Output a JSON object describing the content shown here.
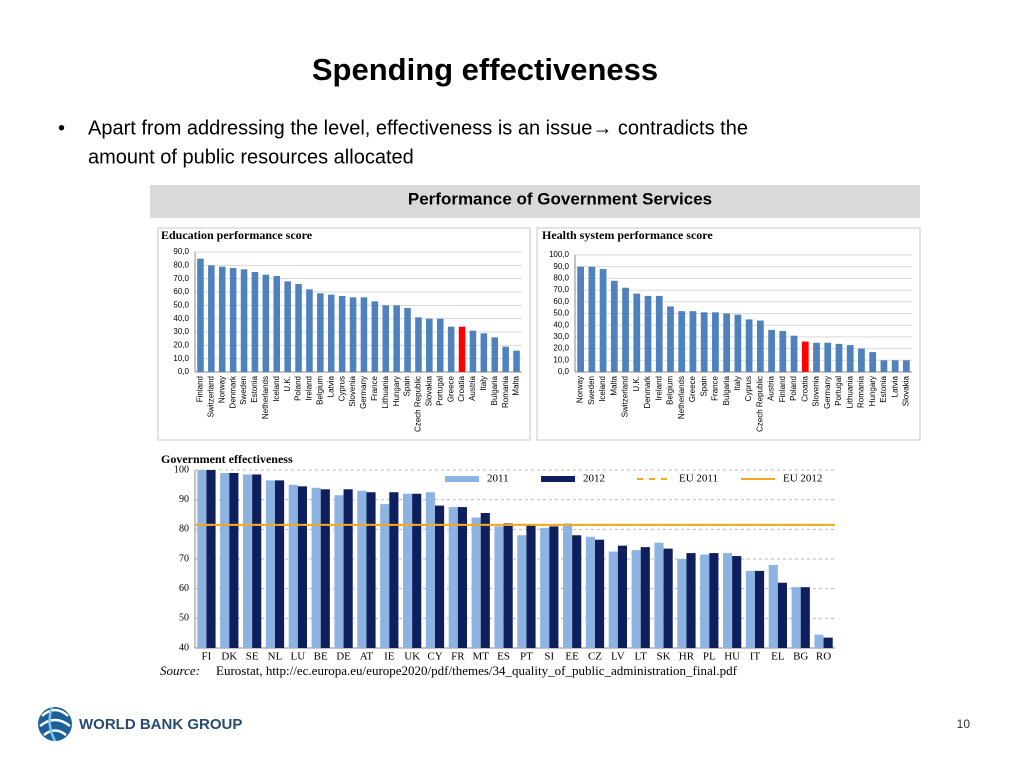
{
  "title": "Spending effectiveness",
  "bullet": {
    "symbol": "•",
    "lines": [
      "Apart from addressing the level, effectiveness is an issue→ contradicts the",
      "amount of public resources allocated"
    ]
  },
  "panel_title": "Performance of Government Services",
  "source": {
    "label": "Source:",
    "text": "Eurostat, http://ec.europa.eu/europe2020/pdf/themes/34_quality_of_public_administration_final.pdf"
  },
  "logo": "WORLD BANK GROUP",
  "page_number": "10",
  "chart_data": [
    {
      "type": "bar",
      "title": "Education performance score",
      "categories": [
        "Finland",
        "Switzerland",
        "Norway",
        "Denmark",
        "Sweden",
        "Estonia",
        "Netherlands",
        "Iceland",
        "U.K.",
        "Poland",
        "Ireland",
        "Belgium",
        "Latvia",
        "Cyprus",
        "Slovenia",
        "Germany",
        "France",
        "Lithuania",
        "Hungary",
        "Spain",
        "Czech Republic",
        "Slovakia",
        "Portugal",
        "Greece",
        "Croatia",
        "Austria",
        "Italy",
        "Bulgaria",
        "Romania",
        "Malta"
      ],
      "values": [
        85,
        80,
        79,
        78,
        77,
        75,
        73,
        72,
        68,
        66,
        62,
        59,
        58,
        57,
        56,
        56,
        53,
        50,
        50,
        48,
        41,
        40,
        40,
        34,
        34,
        31,
        29,
        26,
        19,
        16
      ],
      "colors": [
        "#4f81bd",
        "#4f81bd",
        "#4f81bd",
        "#4f81bd",
        "#4f81bd",
        "#4f81bd",
        "#4f81bd",
        "#4f81bd",
        "#4f81bd",
        "#4f81bd",
        "#4f81bd",
        "#4f81bd",
        "#4f81bd",
        "#4f81bd",
        "#4f81bd",
        "#4f81bd",
        "#4f81bd",
        "#4f81bd",
        "#4f81bd",
        "#4f81bd",
        "#4f81bd",
        "#4f81bd",
        "#4f81bd",
        "#4f81bd",
        "#ff0000",
        "#4f81bd",
        "#4f81bd",
        "#4f81bd",
        "#4f81bd",
        "#4f81bd"
      ],
      "ylim": [
        0,
        90
      ],
      "yticks": [
        {
          "value": 0,
          "label": "0,0"
        },
        {
          "value": 10,
          "label": "10,0"
        },
        {
          "value": 20,
          "label": "20,0"
        },
        {
          "value": 30,
          "label": "30,0"
        },
        {
          "value": 40,
          "label": "40,0"
        },
        {
          "value": 50,
          "label": "50,0"
        },
        {
          "value": 60,
          "label": "60,0"
        },
        {
          "value": 70,
          "label": "70,0"
        },
        {
          "value": 80,
          "label": "80,0"
        },
        {
          "value": 90,
          "label": "90,0"
        }
      ],
      "grid": true
    },
    {
      "type": "bar",
      "title": "Health system performance score",
      "categories": [
        "Norway",
        "Sweden",
        "Iceland",
        "Malta",
        "Switzerland",
        "U.K.",
        "Denmark",
        "Ireland",
        "Belgium",
        "Netherlands",
        "Greece",
        "Spain",
        "France",
        "Bulgaria",
        "Italy",
        "Cyprus",
        "Czech Republic",
        "Austria",
        "Finland",
        "Poland",
        "Croatia",
        "Slovenia",
        "Germany",
        "Portugal",
        "Lithuania",
        "Romania",
        "Hungary",
        "Estonia",
        "Latvia",
        "Slovakia"
      ],
      "values": [
        90,
        90,
        88,
        78,
        72,
        67,
        65,
        65,
        56,
        52,
        52,
        51,
        51,
        50,
        49,
        45,
        44,
        36,
        35,
        31,
        26,
        25,
        25,
        24,
        23,
        20,
        17,
        10,
        10,
        10
      ],
      "colors": [
        "#4f81bd",
        "#4f81bd",
        "#4f81bd",
        "#4f81bd",
        "#4f81bd",
        "#4f81bd",
        "#4f81bd",
        "#4f81bd",
        "#4f81bd",
        "#4f81bd",
        "#4f81bd",
        "#4f81bd",
        "#4f81bd",
        "#4f81bd",
        "#4f81bd",
        "#4f81bd",
        "#4f81bd",
        "#4f81bd",
        "#4f81bd",
        "#4f81bd",
        "#ff0000",
        "#4f81bd",
        "#4f81bd",
        "#4f81bd",
        "#4f81bd",
        "#4f81bd",
        "#4f81bd",
        "#4f81bd",
        "#4f81bd",
        "#4f81bd"
      ],
      "ylim": [
        0,
        100
      ],
      "yticks": [
        {
          "value": 0,
          "label": "0,0"
        },
        {
          "value": 10,
          "label": "10,0"
        },
        {
          "value": 20,
          "label": "20,0"
        },
        {
          "value": 30,
          "label": "30,0"
        },
        {
          "value": 40,
          "label": "40,0"
        },
        {
          "value": 50,
          "label": "50,0"
        },
        {
          "value": 60,
          "label": "60,0"
        },
        {
          "value": 70,
          "label": "70,0"
        },
        {
          "value": 80,
          "label": "80,0"
        },
        {
          "value": 90,
          "label": "90,0"
        },
        {
          "value": 100,
          "label": "100,0"
        }
      ],
      "grid": true
    },
    {
      "type": "grouped_bar",
      "title": "Government effectiveness",
      "categories": [
        "FI",
        "DK",
        "SE",
        "NL",
        "LU",
        "BE",
        "DE",
        "AT",
        "IE",
        "UK",
        "CY",
        "FR",
        "MT",
        "ES",
        "PT",
        "SI",
        "EE",
        "CZ",
        "LV",
        "LT",
        "SK",
        "HR",
        "PL",
        "HU",
        "IT",
        "EL",
        "BG",
        "RO"
      ],
      "series": [
        {
          "name": "2011",
          "color": "#8db3e2",
          "values": [
            100,
            99,
            98.5,
            96.5,
            95,
            94,
            91.5,
            93,
            88.5,
            92,
            92.5,
            87.5,
            84,
            81,
            78,
            80.5,
            82,
            77.5,
            72.5,
            73,
            75.5,
            70,
            71.5,
            72,
            66,
            68,
            60.5,
            44.5
          ]
        },
        {
          "name": "2012",
          "color": "#0f1f5e",
          "values": [
            100,
            99,
            98.5,
            96.5,
            94.5,
            93.5,
            93.5,
            92.5,
            92.5,
            92,
            88,
            87.5,
            85.5,
            82,
            81.5,
            81,
            78,
            76.5,
            74.5,
            74,
            73.5,
            72,
            72,
            71,
            66,
            62,
            60.5,
            43.5
          ]
        }
      ],
      "reference_lines": [
        {
          "name": "EU 2011",
          "value": 81.5,
          "color": "#f5a623",
          "dashed": true
        },
        {
          "name": "EU 2012",
          "value": 81.5,
          "color": "#f5a623",
          "dashed": false
        }
      ],
      "ylim": [
        40,
        100
      ],
      "yticks": [
        40,
        50,
        60,
        70,
        80,
        90,
        100
      ],
      "grid": true
    }
  ]
}
